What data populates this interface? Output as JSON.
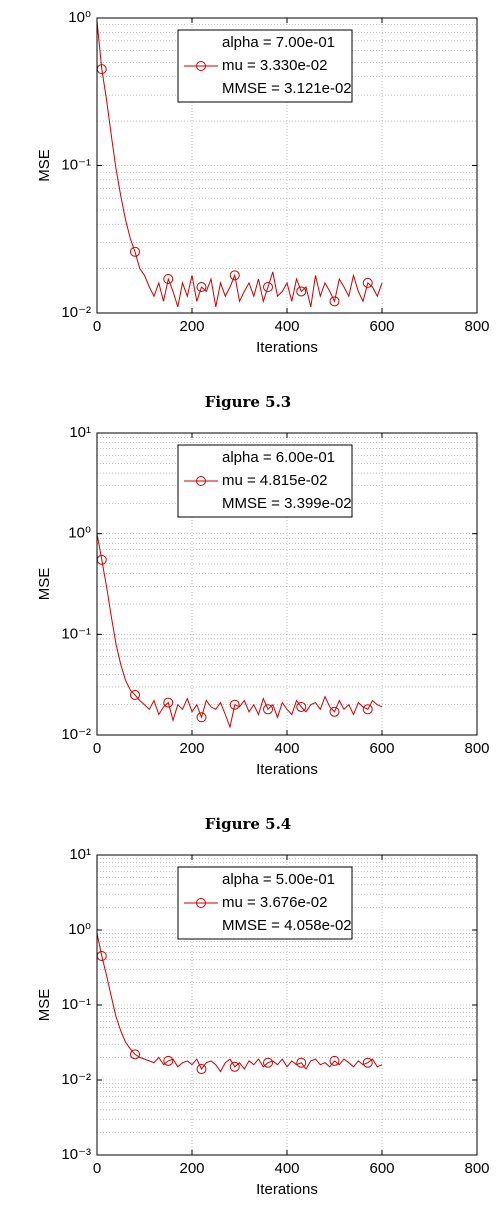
{
  "chart_data": [
    {
      "type": "line",
      "caption": "Figure 5.3",
      "xlabel": "Iterations",
      "ylabel": "MSE",
      "xlim": [
        0,
        800
      ],
      "xticks": [
        0,
        200,
        400,
        600,
        800
      ],
      "ylim": [
        0.01,
        1
      ],
      "log_y": true,
      "grid": true,
      "yticks": [
        {
          "value": 0.01,
          "label": "10⁻²"
        },
        {
          "value": 0.1,
          "label": "10⁻¹"
        },
        {
          "value": 1,
          "label": "10⁰"
        }
      ],
      "annotations": [
        "alpha = 7.00e-01",
        "MMSE = 3.121e-02"
      ],
      "marker": "circle",
      "x": [
        0,
        10,
        20,
        30,
        40,
        50,
        60,
        70,
        80,
        90,
        100,
        110,
        120,
        130,
        140,
        150,
        160,
        170,
        180,
        190,
        200,
        210,
        220,
        230,
        240,
        250,
        260,
        270,
        280,
        290,
        300,
        310,
        320,
        330,
        340,
        350,
        360,
        370,
        380,
        390,
        400,
        410,
        420,
        430,
        440,
        450,
        460,
        470,
        480,
        490,
        500,
        510,
        520,
        530,
        540,
        550,
        560,
        570,
        580,
        590,
        600
      ],
      "series": [
        {
          "name": "mu = 3.330e-02",
          "color": "#cc0000",
          "values": [
            0.95,
            0.45,
            0.28,
            0.16,
            0.095,
            0.062,
            0.043,
            0.032,
            0.026,
            0.02,
            0.018,
            0.015,
            0.013,
            0.016,
            0.012,
            0.017,
            0.014,
            0.011,
            0.016,
            0.013,
            0.018,
            0.012,
            0.015,
            0.014,
            0.017,
            0.011,
            0.016,
            0.013,
            0.015,
            0.018,
            0.012,
            0.014,
            0.016,
            0.013,
            0.017,
            0.012,
            0.015,
            0.019,
            0.013,
            0.014,
            0.016,
            0.012,
            0.017,
            0.014,
            0.015,
            0.011,
            0.018,
            0.013,
            0.016,
            0.014,
            0.012,
            0.017,
            0.015,
            0.013,
            0.018,
            0.014,
            0.012,
            0.016,
            0.015,
            0.013,
            0.016
          ]
        }
      ]
    },
    {
      "type": "line",
      "caption": "Figure 5.4",
      "xlabel": "Iterations",
      "ylabel": "MSE",
      "xlim": [
        0,
        800
      ],
      "xticks": [
        0,
        200,
        400,
        600,
        800
      ],
      "ylim": [
        0.01,
        10
      ],
      "log_y": true,
      "grid": true,
      "yticks": [
        {
          "value": 0.01,
          "label": "10⁻²"
        },
        {
          "value": 0.1,
          "label": "10⁻¹"
        },
        {
          "value": 1,
          "label": "10⁰"
        },
        {
          "value": 10,
          "label": "10¹"
        }
      ],
      "annotations": [
        "alpha = 6.00e-01",
        "MMSE = 3.399e-02"
      ],
      "marker": "circle",
      "x": [
        0,
        10,
        20,
        30,
        40,
        50,
        60,
        70,
        80,
        90,
        100,
        110,
        120,
        130,
        140,
        150,
        160,
        170,
        180,
        190,
        200,
        210,
        220,
        230,
        240,
        250,
        260,
        270,
        280,
        290,
        300,
        310,
        320,
        330,
        340,
        350,
        360,
        370,
        380,
        390,
        400,
        410,
        420,
        430,
        440,
        450,
        460,
        470,
        480,
        490,
        500,
        510,
        520,
        530,
        540,
        550,
        560,
        570,
        580,
        590,
        600
      ],
      "series": [
        {
          "name": "mu = 4.815e-02",
          "color": "#cc0000",
          "values": [
            1.0,
            0.55,
            0.3,
            0.15,
            0.08,
            0.05,
            0.035,
            0.028,
            0.025,
            0.022,
            0.02,
            0.018,
            0.022,
            0.016,
            0.019,
            0.021,
            0.014,
            0.02,
            0.018,
            0.023,
            0.017,
            0.02,
            0.015,
            0.022,
            0.019,
            0.018,
            0.021,
            0.016,
            0.012,
            0.02,
            0.019,
            0.022,
            0.017,
            0.02,
            0.016,
            0.023,
            0.018,
            0.02,
            0.015,
            0.021,
            0.018,
            0.016,
            0.022,
            0.019,
            0.017,
            0.02,
            0.021,
            0.018,
            0.024,
            0.019,
            0.017,
            0.022,
            0.018,
            0.02,
            0.016,
            0.021,
            0.019,
            0.018,
            0.022,
            0.02,
            0.019
          ]
        }
      ]
    },
    {
      "type": "line",
      "xlabel": "Iterations",
      "ylabel": "MSE",
      "xlim": [
        0,
        800
      ],
      "xticks": [
        0,
        200,
        400,
        600,
        800
      ],
      "ylim": [
        0.001,
        10
      ],
      "log_y": true,
      "grid": true,
      "yticks": [
        {
          "value": 0.001,
          "label": "10⁻³"
        },
        {
          "value": 0.01,
          "label": "10⁻²"
        },
        {
          "value": 0.1,
          "label": "10⁻¹"
        },
        {
          "value": 1,
          "label": "10⁰"
        },
        {
          "value": 10,
          "label": "10¹"
        }
      ],
      "annotations": [
        "alpha = 5.00e-01",
        "MMSE = 4.058e-02"
      ],
      "marker": "circle",
      "x": [
        0,
        10,
        20,
        30,
        40,
        50,
        60,
        70,
        80,
        90,
        100,
        110,
        120,
        130,
        140,
        150,
        160,
        170,
        180,
        190,
        200,
        210,
        220,
        230,
        240,
        250,
        260,
        270,
        280,
        290,
        300,
        310,
        320,
        330,
        340,
        350,
        360,
        370,
        380,
        390,
        400,
        410,
        420,
        430,
        440,
        450,
        460,
        470,
        480,
        490,
        500,
        510,
        520,
        530,
        540,
        550,
        560,
        570,
        580,
        590,
        600
      ],
      "series": [
        {
          "name": "mu = 3.676e-02",
          "color": "#cc0000",
          "values": [
            0.9,
            0.45,
            0.25,
            0.13,
            0.07,
            0.045,
            0.032,
            0.026,
            0.022,
            0.02,
            0.019,
            0.018,
            0.017,
            0.02,
            0.016,
            0.018,
            0.019,
            0.015,
            0.017,
            0.018,
            0.016,
            0.019,
            0.014,
            0.017,
            0.018,
            0.016,
            0.013,
            0.017,
            0.019,
            0.015,
            0.017,
            0.014,
            0.018,
            0.016,
            0.019,
            0.015,
            0.017,
            0.018,
            0.016,
            0.019,
            0.015,
            0.018,
            0.016,
            0.017,
            0.014,
            0.018,
            0.019,
            0.016,
            0.017,
            0.015,
            0.018,
            0.016,
            0.019,
            0.017,
            0.015,
            0.018,
            0.016,
            0.017,
            0.019,
            0.015,
            0.016
          ]
        }
      ]
    }
  ]
}
